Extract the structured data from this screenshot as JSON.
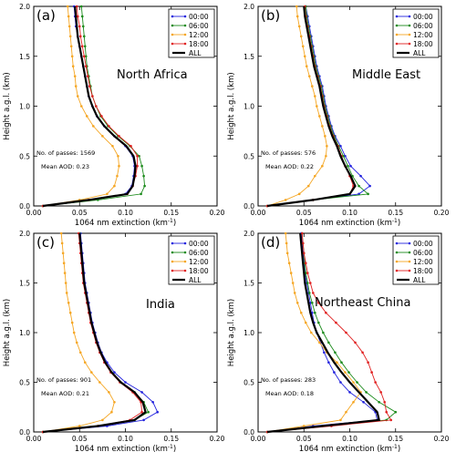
{
  "figure": {
    "shared_xlabel": "1064 nm extinction (km",
    "shared_xlabel_sup": "-1",
    "shared_xlabel_tail": ")",
    "shared_ylabel": "Height a.g.l. (km)",
    "legend_labels": [
      "00:00",
      "06:00",
      "12:00",
      "18:00",
      "ALL"
    ],
    "colors": {
      "00:00": "#2222dd",
      "06:00": "#1a8a1a",
      "12:00": "#f5a623",
      "18:00": "#e02020",
      "ALL": "#000000"
    },
    "x_ticks": [
      "0.00",
      "0.05",
      "0.10",
      "0.15",
      "0.20"
    ],
    "y_ticks": [
      "0.0",
      "0.5",
      "1.0",
      "1.5",
      "2.0"
    ]
  },
  "chart_data": [
    {
      "type": "line",
      "panel_label": "(a)",
      "region": "North Africa",
      "passes_label": "No. of passes: 1569",
      "aod_label": "Mean AOD: 0.23",
      "xlabel": "1064 nm extinction (km-1)",
      "ylabel": "Height a.g.l. (km)",
      "xlim": [
        0,
        0.2
      ],
      "ylim": [
        0,
        2
      ],
      "legend": "top-right",
      "y": [
        0.0,
        0.06,
        0.12,
        0.2,
        0.3,
        0.4,
        0.5,
        0.6,
        0.7,
        0.8,
        0.9,
        1.0,
        1.1,
        1.2,
        1.3,
        1.4,
        1.5,
        1.6,
        1.7,
        1.8,
        1.9,
        2.0
      ],
      "series": [
        {
          "name": "00:00",
          "values": [
            0.01,
            0.06,
            0.1,
            0.107,
            0.109,
            0.11,
            0.108,
            0.1,
            0.088,
            0.077,
            0.069,
            0.064,
            0.06,
            0.058,
            0.056,
            0.054,
            0.052,
            0.05,
            0.048,
            0.046,
            0.045,
            0.044
          ]
        },
        {
          "name": "06:00",
          "values": [
            0.01,
            0.07,
            0.117,
            0.121,
            0.12,
            0.118,
            0.115,
            0.105,
            0.092,
            0.081,
            0.073,
            0.068,
            0.064,
            0.062,
            0.06,
            0.058,
            0.057,
            0.056,
            0.055,
            0.054,
            0.053,
            0.052
          ]
        },
        {
          "name": "12:00",
          "values": [
            0.01,
            0.05,
            0.08,
            0.088,
            0.091,
            0.093,
            0.092,
            0.086,
            0.075,
            0.065,
            0.058,
            0.052,
            0.048,
            0.046,
            0.045,
            0.043,
            0.042,
            0.041,
            0.04,
            0.039,
            0.038,
            0.037
          ]
        },
        {
          "name": "18:00",
          "values": [
            0.01,
            0.06,
            0.102,
            0.108,
            0.111,
            0.113,
            0.113,
            0.106,
            0.093,
            0.082,
            0.074,
            0.068,
            0.064,
            0.061,
            0.059,
            0.057,
            0.055,
            0.053,
            0.051,
            0.05,
            0.048,
            0.047
          ]
        },
        {
          "name": "ALL",
          "values": [
            0.01,
            0.06,
            0.102,
            0.108,
            0.11,
            0.111,
            0.109,
            0.101,
            0.088,
            0.077,
            0.069,
            0.064,
            0.06,
            0.058,
            0.056,
            0.054,
            0.052,
            0.05,
            0.048,
            0.047,
            0.046,
            0.045
          ]
        }
      ]
    },
    {
      "type": "line",
      "panel_label": "(b)",
      "region": "Middle East",
      "passes_label": "No. of passes: 576",
      "aod_label": "Mean AOD: 0.22",
      "xlabel": "1064 nm extinction (km-1)",
      "ylabel": "Height a.g.l. (km)",
      "xlim": [
        0,
        0.2
      ],
      "ylim": [
        0,
        2
      ],
      "legend": "top-right",
      "y": [
        0.0,
        0.06,
        0.12,
        0.2,
        0.3,
        0.4,
        0.5,
        0.6,
        0.7,
        0.8,
        0.9,
        1.0,
        1.1,
        1.2,
        1.3,
        1.4,
        1.5,
        1.6,
        1.7,
        1.8,
        1.9,
        2.0
      ],
      "series": [
        {
          "name": "00:00",
          "values": [
            0.01,
            0.06,
            0.11,
            0.122,
            0.112,
            0.101,
            0.095,
            0.09,
            0.084,
            0.08,
            0.077,
            0.074,
            0.072,
            0.07,
            0.067,
            0.064,
            0.062,
            0.06,
            0.058,
            0.056,
            0.054,
            0.052
          ]
        },
        {
          "name": "06:00",
          "values": [
            0.01,
            0.06,
            0.12,
            0.11,
            0.103,
            0.098,
            0.093,
            0.088,
            0.083,
            0.079,
            0.076,
            0.073,
            0.071,
            0.069,
            0.066,
            0.063,
            0.061,
            0.059,
            0.057,
            0.055,
            0.053,
            0.052
          ]
        },
        {
          "name": "12:00",
          "values": [
            0.01,
            0.03,
            0.045,
            0.055,
            0.062,
            0.07,
            0.074,
            0.075,
            0.073,
            0.07,
            0.067,
            0.064,
            0.062,
            0.059,
            0.056,
            0.053,
            0.051,
            0.049,
            0.047,
            0.045,
            0.043,
            0.042
          ]
        },
        {
          "name": "18:00",
          "values": [
            0.01,
            0.06,
            0.1,
            0.104,
            0.1,
            0.095,
            0.091,
            0.087,
            0.082,
            0.078,
            0.075,
            0.072,
            0.07,
            0.068,
            0.065,
            0.062,
            0.06,
            0.058,
            0.056,
            0.054,
            0.052,
            0.051
          ]
        },
        {
          "name": "ALL",
          "values": [
            0.01,
            0.06,
            0.1,
            0.106,
            0.101,
            0.095,
            0.09,
            0.086,
            0.081,
            0.077,
            0.074,
            0.071,
            0.069,
            0.067,
            0.064,
            0.061,
            0.059,
            0.057,
            0.055,
            0.053,
            0.051,
            0.05
          ]
        }
      ]
    },
    {
      "type": "line",
      "panel_label": "(c)",
      "region": "India",
      "passes_label": "No. of passes: 901",
      "aod_label": "Mean AOD: 0.21",
      "xlabel": "1064 nm extinction (km-1)",
      "ylabel": "Height a.g.l. (km)",
      "xlim": [
        0,
        0.2
      ],
      "ylim": [
        0,
        2
      ],
      "legend": "top-right",
      "y": [
        0.0,
        0.06,
        0.12,
        0.2,
        0.3,
        0.4,
        0.5,
        0.6,
        0.7,
        0.8,
        0.9,
        1.0,
        1.1,
        1.2,
        1.3,
        1.4,
        1.5,
        1.6,
        1.7,
        1.8,
        1.9,
        2.0
      ],
      "series": [
        {
          "name": "00:00",
          "values": [
            0.01,
            0.08,
            0.12,
            0.135,
            0.13,
            0.118,
            0.1,
            0.088,
            0.08,
            0.074,
            0.07,
            0.067,
            0.064,
            0.062,
            0.06,
            0.058,
            0.056,
            0.055,
            0.054,
            0.053,
            0.052,
            0.051
          ]
        },
        {
          "name": "06:00",
          "values": [
            0.01,
            0.07,
            0.11,
            0.125,
            0.12,
            0.11,
            0.095,
            0.085,
            0.078,
            0.073,
            0.069,
            0.066,
            0.063,
            0.061,
            0.059,
            0.057,
            0.055,
            0.054,
            0.053,
            0.052,
            0.051,
            0.05
          ]
        },
        {
          "name": "12:00",
          "values": [
            0.01,
            0.05,
            0.075,
            0.085,
            0.088,
            0.082,
            0.072,
            0.063,
            0.056,
            0.051,
            0.047,
            0.044,
            0.042,
            0.04,
            0.038,
            0.036,
            0.035,
            0.034,
            0.033,
            0.032,
            0.031,
            0.03
          ]
        },
        {
          "name": "18:00",
          "values": [
            0.01,
            0.07,
            0.105,
            0.118,
            0.117,
            0.108,
            0.094,
            0.084,
            0.077,
            0.072,
            0.068,
            0.065,
            0.062,
            0.06,
            0.058,
            0.056,
            0.054,
            0.053,
            0.052,
            0.051,
            0.05,
            0.049
          ]
        },
        {
          "name": "ALL",
          "values": [
            0.01,
            0.07,
            0.11,
            0.122,
            0.119,
            0.11,
            0.095,
            0.085,
            0.078,
            0.073,
            0.069,
            0.066,
            0.063,
            0.061,
            0.059,
            0.057,
            0.055,
            0.054,
            0.053,
            0.052,
            0.051,
            0.05
          ]
        }
      ]
    },
    {
      "type": "line",
      "panel_label": "(d)",
      "region": "Northeast China",
      "passes_label": "No. of passes: 283",
      "aod_label": "Mean AOD: 0.18",
      "xlabel": "1064 nm extinction (km-1)",
      "ylabel": "Height a.g.l. (km)",
      "xlim": [
        0,
        0.2
      ],
      "ylim": [
        0,
        2
      ],
      "legend": "top-right",
      "y": [
        0.0,
        0.06,
        0.12,
        0.2,
        0.3,
        0.4,
        0.5,
        0.6,
        0.7,
        0.8,
        0.9,
        1.0,
        1.1,
        1.2,
        1.3,
        1.4,
        1.5,
        1.6,
        1.7,
        1.8,
        1.9,
        2.0
      ],
      "series": [
        {
          "name": "00:00",
          "values": [
            0.01,
            0.06,
            0.13,
            0.128,
            0.115,
            0.1,
            0.09,
            0.083,
            0.077,
            0.072,
            0.068,
            0.064,
            0.061,
            0.059,
            0.057,
            0.055,
            0.053,
            0.051,
            0.05,
            0.049,
            0.048,
            0.047
          ]
        },
        {
          "name": "06:00",
          "values": [
            0.01,
            0.07,
            0.14,
            0.15,
            0.132,
            0.118,
            0.108,
            0.099,
            0.091,
            0.084,
            0.077,
            0.071,
            0.066,
            0.062,
            0.059,
            0.056,
            0.054,
            0.052,
            0.051,
            0.05,
            0.049,
            0.048
          ]
        },
        {
          "name": "12:00",
          "values": [
            0.01,
            0.05,
            0.09,
            0.096,
            0.104,
            0.112,
            0.104,
            0.095,
            0.086,
            0.075,
            0.067,
            0.058,
            0.052,
            0.047,
            0.043,
            0.04,
            0.038,
            0.036,
            0.034,
            0.032,
            0.031,
            0.03
          ]
        },
        {
          "name": "18:00",
          "values": [
            0.01,
            0.08,
            0.145,
            0.14,
            0.138,
            0.134,
            0.128,
            0.124,
            0.12,
            0.114,
            0.106,
            0.096,
            0.085,
            0.074,
            0.066,
            0.06,
            0.057,
            0.054,
            0.052,
            0.05,
            0.049,
            0.048
          ]
        },
        {
          "name": "ALL",
          "values": [
            0.01,
            0.07,
            0.132,
            0.13,
            0.12,
            0.11,
            0.1,
            0.091,
            0.083,
            0.076,
            0.07,
            0.064,
            0.06,
            0.057,
            0.055,
            0.053,
            0.051,
            0.05,
            0.049,
            0.048,
            0.047,
            0.046
          ]
        }
      ]
    }
  ]
}
